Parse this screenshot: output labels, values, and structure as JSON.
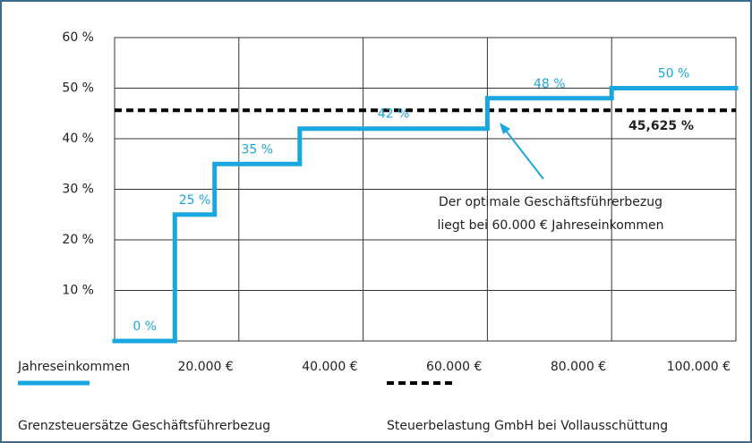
{
  "chart_data": {
    "type": "step",
    "x_label": "Jahreseinkommen",
    "xlim": [
      0,
      100000
    ],
    "xticks": [
      {
        "value": 20000,
        "label": "20.000 €"
      },
      {
        "value": 40000,
        "label": "40.000 €"
      },
      {
        "value": 60000,
        "label": "60.000 €"
      },
      {
        "value": 80000,
        "label": "80.000 €"
      },
      {
        "value": 100000,
        "label": "100.000 €"
      }
    ],
    "ylim": [
      0,
      60
    ],
    "yticks": [
      {
        "value": 10,
        "label": "10 %"
      },
      {
        "value": 20,
        "label": "20 %"
      },
      {
        "value": 30,
        "label": "30 %"
      },
      {
        "value": 40,
        "label": "40 %"
      },
      {
        "value": 50,
        "label": "50 %"
      },
      {
        "value": 60,
        "label": "60 %"
      }
    ],
    "grid": true,
    "series": [
      {
        "name": "Grenzsteuersätze Geschäftsführerbezug",
        "color": "#1aa7e0",
        "x": [
          0,
          9700,
          16100,
          29800,
          60000,
          80000
        ],
        "values": [
          0,
          25,
          35,
          42,
          48,
          50
        ],
        "value_labels": [
          "0 %",
          "25 %",
          "35 %",
          "42 %",
          "48 %",
          "50 %"
        ]
      }
    ],
    "reference": {
      "name": "Steuerbelastung GmbH bei Vollausschüttung",
      "value": 45.625,
      "label": "45,625 %",
      "color": "#000000"
    },
    "annotation": [
      "Der optimale Geschäftsführerbezug",
      "liegt bei 60.000 € Jahreseinkommen"
    ]
  }
}
